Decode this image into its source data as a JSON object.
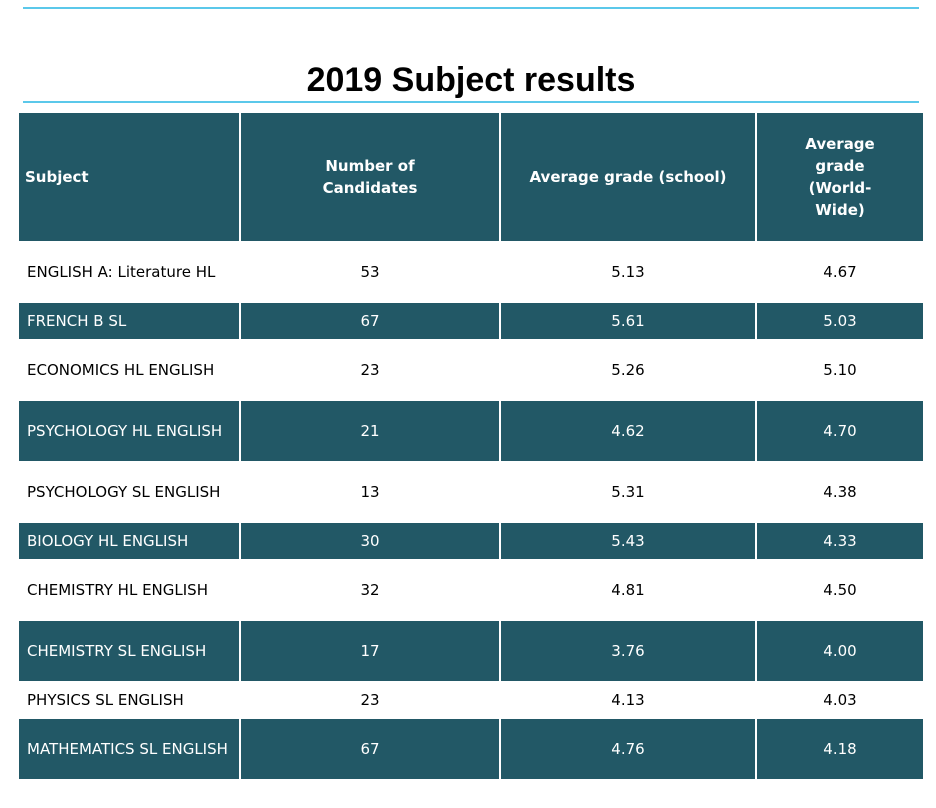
{
  "title": "2019 Subject results",
  "headers": [
    "Subject",
    "Number of Candidates",
    "Average grade (school)",
    "Average grade (World-Wide)"
  ],
  "rows": [
    {
      "subject": "ENGLISH A: Literature HL",
      "candidates": "53",
      "school": "5.13",
      "world": "4.67"
    },
    {
      "subject": "FRENCH B SL",
      "candidates": "67",
      "school": "5.61",
      "world": "5.03"
    },
    {
      "subject": "ECONOMICS HL ENGLISH",
      "candidates": "23",
      "school": "5.26",
      "world": "5.10"
    },
    {
      "subject": "PSYCHOLOGY HL ENGLISH",
      "candidates": "21",
      "school": "4.62",
      "world": "4.70"
    },
    {
      "subject": "PSYCHOLOGY SL ENGLISH",
      "candidates": "13",
      "school": "5.31",
      "world": "4.38"
    },
    {
      "subject": "BIOLOGY HL ENGLISH",
      "candidates": "30",
      "school": "5.43",
      "world": "4.33"
    },
    {
      "subject": "CHEMISTRY HL ENGLISH",
      "candidates": "32",
      "school": "4.81",
      "world": "4.50"
    },
    {
      "subject": "CHEMISTRY SL ENGLISH",
      "candidates": "17",
      "school": "3.76",
      "world": "4.00"
    },
    {
      "subject": "PHYSICS SL ENGLISH",
      "candidates": "23",
      "school": "4.13",
      "world": "4.03"
    },
    {
      "subject": "MATHEMATICS SL ENGLISH",
      "candidates": "67",
      "school": "4.76",
      "world": "4.18"
    }
  ],
  "colors": {
    "header_bg": "#225866",
    "rule": "#5bc8ea"
  }
}
